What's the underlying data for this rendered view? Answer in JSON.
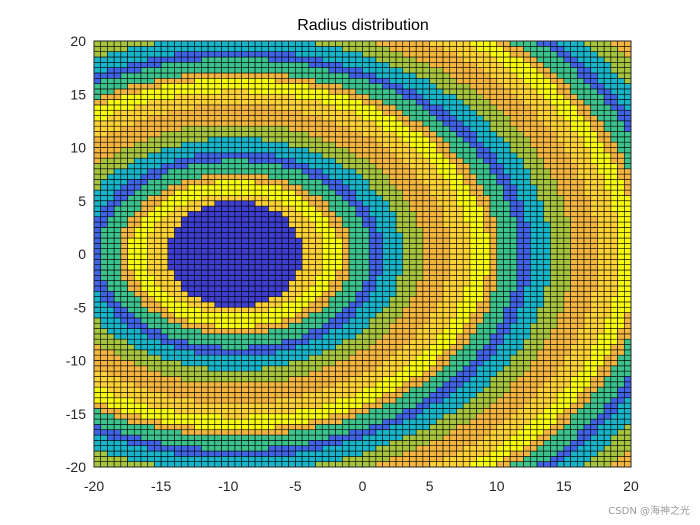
{
  "chart_data": {
    "type": "heatmap",
    "title": "Radius distribution",
    "xlabel": "",
    "ylabel": "",
    "xlim": [
      -20,
      20
    ],
    "ylim": [
      -20,
      20
    ],
    "xticks": [
      -20,
      -15,
      -10,
      -5,
      0,
      5,
      10,
      15,
      20
    ],
    "yticks": [
      -20,
      -15,
      -10,
      -5,
      0,
      5,
      10,
      15,
      20
    ],
    "grid_resolution": 0.5,
    "grid_lines": true,
    "field": {
      "center": [
        -9.5,
        0
      ],
      "axis_ratio_y": 1.15,
      "band_period": 11,
      "inner_disc_radius": 5,
      "circular_region_radius": 6.0
    },
    "colormap": [
      "#3E26A8",
      "#4A5FF0",
      "#2E8FE6",
      "#17B4CA",
      "#3CC38C",
      "#A6C53E",
      "#F5B63F",
      "#FFD236",
      "#F9FB0E"
    ],
    "colors": {
      "inner_disc": "#3E3ECF",
      "outer_band": "#4063E6",
      "background": "#F9FB0E",
      "edge": "#000000"
    }
  },
  "watermark": "CSDN @海神之光"
}
